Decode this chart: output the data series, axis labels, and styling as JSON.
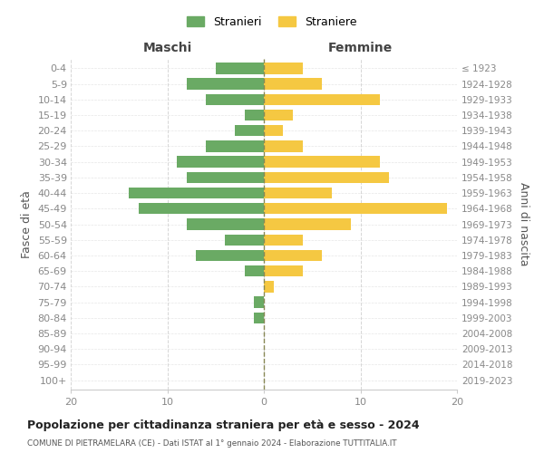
{
  "age_groups": [
    "0-4",
    "5-9",
    "10-14",
    "15-19",
    "20-24",
    "25-29",
    "30-34",
    "35-39",
    "40-44",
    "45-49",
    "50-54",
    "55-59",
    "60-64",
    "65-69",
    "70-74",
    "75-79",
    "80-84",
    "85-89",
    "90-94",
    "95-99",
    "100+"
  ],
  "birth_years": [
    "2019-2023",
    "2014-2018",
    "2009-2013",
    "2004-2008",
    "1999-2003",
    "1994-1998",
    "1989-1993",
    "1984-1988",
    "1979-1983",
    "1974-1978",
    "1969-1973",
    "1964-1968",
    "1959-1963",
    "1954-1958",
    "1949-1953",
    "1944-1948",
    "1939-1943",
    "1934-1938",
    "1929-1933",
    "1924-1928",
    "≤ 1923"
  ],
  "males": [
    5,
    8,
    6,
    2,
    3,
    6,
    9,
    8,
    14,
    13,
    8,
    4,
    7,
    2,
    0,
    1,
    1,
    0,
    0,
    0,
    0
  ],
  "females": [
    4,
    6,
    12,
    3,
    2,
    4,
    12,
    13,
    7,
    19,
    9,
    4,
    6,
    4,
    1,
    0,
    0,
    0,
    0,
    0,
    0
  ],
  "male_color": "#6aaa64",
  "female_color": "#f5c842",
  "male_label": "Stranieri",
  "female_label": "Straniere",
  "title": "Popolazione per cittadinanza straniera per età e sesso - 2024",
  "subtitle": "COMUNE DI PIETRAMELARA (CE) - Dati ISTAT al 1° gennaio 2024 - Elaborazione TUTTITALIA.IT",
  "left_header": "Maschi",
  "right_header": "Femmine",
  "ylabel_left": "Fasce di età",
  "ylabel_right": "Anni di nascita",
  "xlim": 20,
  "background_color": "#ffffff",
  "grid_color": "#cccccc"
}
